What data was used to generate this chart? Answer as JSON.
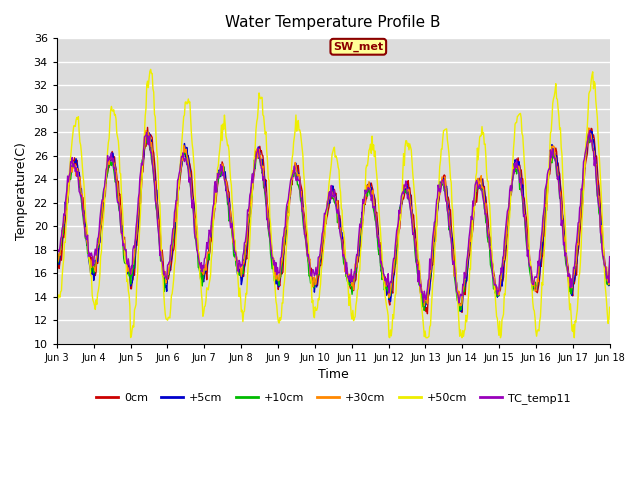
{
  "title": "Water Temperature Profile B",
  "xlabel": "Time",
  "ylabel": "Temperature(C)",
  "ylim": [
    10,
    36
  ],
  "yticks": [
    10,
    12,
    14,
    16,
    18,
    20,
    22,
    24,
    26,
    28,
    30,
    32,
    34,
    36
  ],
  "annotation_label": "SW_met",
  "annotation_color": "#8B0000",
  "annotation_bg": "#FFFF99",
  "bg_color": "#DCDCDC",
  "lines": [
    {
      "label": "0cm",
      "color": "#CC0000"
    },
    {
      "label": "+5cm",
      "color": "#0000CC"
    },
    {
      "label": "+10cm",
      "color": "#00BB00"
    },
    {
      "label": "+30cm",
      "color": "#FF8800"
    },
    {
      "label": "+50cm",
      "color": "#EEEE00"
    },
    {
      "label": "TC_temp11",
      "color": "#9900BB"
    }
  ],
  "xtick_labels": [
    "Jun 3",
    "Jun 4",
    "Jun 5",
    "Jun 6",
    "Jun 7",
    "Jun 8",
    "Jun 9",
    "Jun 10",
    "Jun 11",
    "Jun 12",
    "Jun 13",
    "Jun 14",
    "Jun 15",
    "Jun 16",
    "Jun 17",
    "Jun 18"
  ],
  "n_days": 15,
  "n_points": 720,
  "figsize": [
    6.4,
    4.8
  ],
  "dpi": 100
}
